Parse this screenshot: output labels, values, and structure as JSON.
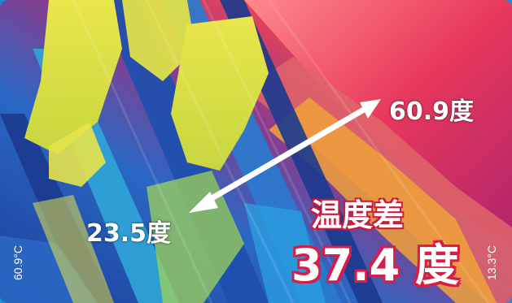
{
  "thermal_image": {
    "hot_label": "60.9度",
    "cold_label": "23.5度",
    "difference_title": "温度差",
    "difference_value": "37.4 度",
    "scale_left": "60.9°C",
    "scale_right": "13.3°C",
    "colors": {
      "background": "#1a8fd6",
      "hot": "#e83a5a",
      "warm": "#f5a623",
      "mid": "#e8e24a",
      "cool": "#2fa6d8",
      "cold": "#1b3a8f",
      "accent_text": "#d81e44"
    }
  }
}
